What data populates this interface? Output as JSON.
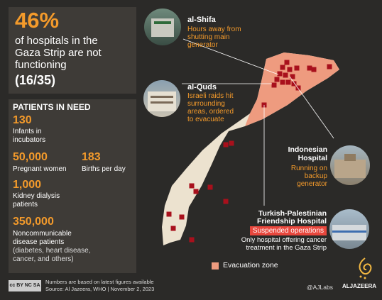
{
  "headline": {
    "percent": "46%",
    "line1": "of hospitals in the",
    "line2": "Gaza Strip are not",
    "line3": "functioning",
    "ratio": "(16/35)"
  },
  "patients": {
    "heading": "PATIENTS IN NEED",
    "infants_value": "130",
    "infants_label1": "Infants in",
    "infants_label2": "incubators",
    "pregnant_value": "50,000",
    "pregnant_label": "Pregnant women",
    "births_value": "183",
    "births_label": "Births per day",
    "kidney_value": "1,000",
    "kidney_label1": "Kidney dialysis",
    "kidney_label2": "patients",
    "ncd_value": "350,000",
    "ncd_label1": "Noncommunicable",
    "ncd_label2": "disease patients",
    "ncd_label3": "(diabetes, heart disease,",
    "ncd_label4": "cancer, and others)"
  },
  "hospitals": {
    "shifa_name": "al-Shifa",
    "shifa_note1": "Hours away from",
    "shifa_note2": "shutting main",
    "shifa_note3": "generator",
    "quds_name": "al-Quds",
    "quds_note1": "Israeli raids hit",
    "quds_note2": "surrounding",
    "quds_note3": "areas, ordered",
    "quds_note4": "to evacuate",
    "indonesian_name1": "Indonesian",
    "indonesian_name2": "Hospital",
    "indonesian_note1": "Running on",
    "indonesian_note2": "backup",
    "indonesian_note3": "generator",
    "turkish_name1": "Turkish-Palestinian",
    "turkish_name2": "Friendship Hospital",
    "turkish_badge": "Suspended operations",
    "turkish_note1": "Only hospital offering cancer",
    "turkish_note2": "treatment in the Gaza Strip"
  },
  "legend": {
    "evacuation_label": "Evacuation zone"
  },
  "footer": {
    "license": "cc BY NC SA",
    "note": "Numbers are based on latest figures available",
    "source": "Source: Al Jazeera, WHO | November 2, 2023",
    "handle": "@AJLabs",
    "brand": "ALJAZEERA"
  },
  "colors": {
    "background": "#2b2a28",
    "panel": "#3e3b37",
    "accent": "#f39a2b",
    "land": "#ece2cf",
    "evacuation": "#ee9b7f",
    "marker": "#a8101c",
    "badge": "#e8473d"
  }
}
